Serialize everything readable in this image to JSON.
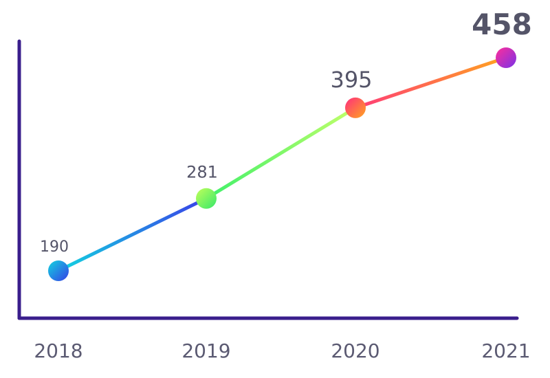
{
  "chart_data": {
    "type": "line",
    "title": "",
    "xlabel": "",
    "ylabel": "",
    "categories": [
      "2018",
      "2019",
      "2020",
      "2021"
    ],
    "values": [
      190,
      281,
      395,
      458
    ],
    "data_labels": [
      "190",
      "281",
      "395",
      "458"
    ],
    "grid": false,
    "legend": "none",
    "axis_color": "#3a1e8c",
    "label_color": "#545468",
    "segment_colors": [
      [
        "#12d4e0",
        "#3a3fe8"
      ],
      [
        "#3ff06a",
        "#c2ff6a"
      ],
      [
        "#ff3b78",
        "#ffa51e"
      ]
    ],
    "marker_colors": [
      [
        "#12d4e0",
        "#3540e6"
      ],
      [
        "#c2ff5a",
        "#36e86a"
      ],
      [
        "#ff2e7e",
        "#ffa51e"
      ],
      [
        "#ff2e9a",
        "#7a32e8"
      ]
    ]
  }
}
